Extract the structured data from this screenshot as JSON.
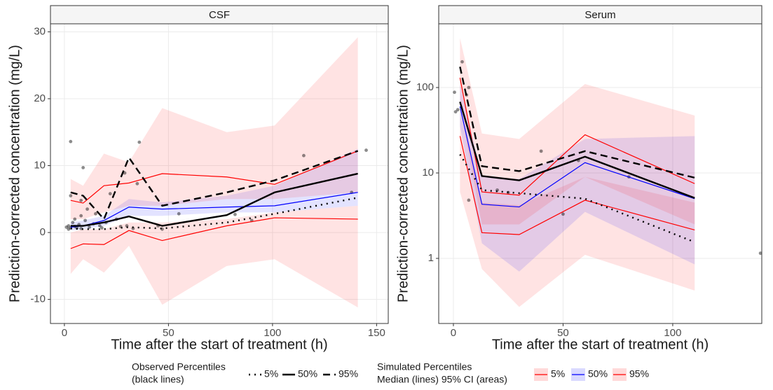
{
  "chart_data": [
    {
      "type": "line",
      "title": "CSF",
      "x_label": "Time after the start of treatment (h)",
      "y_label": "Prediction-corrected concentration (mg/L)",
      "xlim": [
        -6.7,
        155.6
      ],
      "ylim": [
        -13.6,
        31.2
      ],
      "log_y": false,
      "grid": true,
      "xticks": [
        0,
        50,
        100,
        150
      ],
      "yticks": [
        -10,
        0,
        10,
        20,
        30
      ],
      "x": [
        3,
        9,
        19,
        31,
        47,
        78,
        101,
        141
      ],
      "ci": [
        {
          "name": "5%",
          "color": "#ff0000",
          "lower": [
            -6.2,
            -4,
            -6,
            -2,
            -10.8,
            -5,
            -4,
            -11.2
          ],
          "upper": [
            0,
            0.5,
            0.5,
            1.5,
            1.5,
            2,
            3,
            4
          ]
        },
        {
          "name": "50%",
          "color": "#0000ff",
          "lower": [
            0.3,
            0.5,
            1,
            2.5,
            2.5,
            3,
            3,
            4
          ],
          "upper": [
            1.5,
            1.8,
            2.5,
            5,
            4.5,
            5.5,
            7,
            12.5
          ]
        },
        {
          "name": "95%",
          "color": "#ff0000",
          "lower": [
            2,
            2,
            3,
            4,
            4,
            5,
            5,
            6
          ],
          "upper": [
            8,
            7,
            11.8,
            10.5,
            18.6,
            15,
            16,
            29.2
          ]
        }
      ],
      "simulated": [
        {
          "name": "5%",
          "color": "#ff0000",
          "values": [
            -2.4,
            -1.7,
            -1.8,
            0.3,
            -1.2,
            1.0,
            2.2,
            2.0
          ]
        },
        {
          "name": "50%",
          "color": "#0000ff",
          "values": [
            0.8,
            1.0,
            1.8,
            3.8,
            3.5,
            3.8,
            4.0,
            6.0
          ]
        },
        {
          "name": "95%",
          "color": "#ff0000",
          "values": [
            4.8,
            4.4,
            7.0,
            7.4,
            8.8,
            8.3,
            7.2,
            12.2
          ]
        }
      ],
      "observed": [
        {
          "name": "5%",
          "color": "#000000",
          "style": "dotted",
          "values": [
            0.6,
            0.5,
            0.5,
            0.8,
            0.6,
            1.5,
            2.8,
            5.2
          ]
        },
        {
          "name": "50%",
          "color": "#000000",
          "style": "solid",
          "values": [
            1.0,
            1.0,
            1.5,
            2.4,
            1.0,
            2.6,
            6.0,
            8.8
          ]
        },
        {
          "name": "95%",
          "color": "#000000",
          "style": "dashed",
          "values": [
            6.0,
            5.5,
            2.0,
            11.2,
            4.0,
            6.0,
            7.8,
            12.2
          ]
        }
      ],
      "points": {
        "x": [
          1,
          2,
          2,
          3,
          3,
          4,
          5,
          5,
          6,
          7,
          8,
          8,
          9,
          10,
          11,
          12,
          14,
          15,
          17,
          18,
          20,
          22,
          25,
          29,
          30,
          33,
          36,
          45,
          47,
          55,
          82,
          90,
          115,
          138,
          145,
          3,
          8,
          35,
          27
        ],
        "y": [
          0.8,
          1.0,
          0.5,
          5.5,
          13.6,
          1.5,
          0.9,
          2.0,
          0.7,
          1.2,
          2.5,
          0.6,
          9.7,
          1.8,
          3.5,
          0.8,
          1.3,
          2.8,
          1.0,
          0.7,
          1.5,
          5.8,
          2.0,
          8.9,
          1.0,
          0.6,
          13.5,
          1.0,
          0.5,
          2.8,
          2.7,
          1.8,
          11.5,
          6.0,
          12.3,
          0.7,
          4.8,
          7.3,
          0.9
        ]
      }
    },
    {
      "type": "line",
      "title": "Serum",
      "x_label": "Time after the start of treatment (h)",
      "y_label": "Prediction-corrected concentration (mg/L)",
      "xlim": [
        -6.7,
        140.6
      ],
      "ylim": [
        0.173,
        557
      ],
      "log_y": true,
      "grid": true,
      "xticks": [
        0,
        50,
        100
      ],
      "yticks": [
        1,
        10,
        100
      ],
      "x": [
        3,
        13,
        30,
        60,
        110
      ],
      "ci": [
        {
          "name": "5%",
          "color": "#ff0000",
          "lower": [
            6,
            0.75,
            0.27,
            1.1,
            0.42
          ],
          "upper": [
            55,
            4.5,
            4.2,
            9,
            4.5
          ]
        },
        {
          "name": "50%",
          "color": "#0000ff",
          "lower": [
            35,
            1.5,
            0.7,
            3.5,
            0.85
          ],
          "upper": [
            110,
            9,
            8.5,
            25,
            27
          ]
        },
        {
          "name": "95%",
          "color": "#ff0000",
          "lower": [
            60,
            2.5,
            2.5,
            9,
            2.5
          ],
          "upper": [
            380,
            29,
            25,
            110,
            47
          ]
        }
      ],
      "simulated": [
        {
          "name": "5%",
          "color": "#ff0000",
          "values": [
            27,
            2.0,
            1.9,
            4.8,
            2.15
          ]
        },
        {
          "name": "50%",
          "color": "#0000ff",
          "values": [
            60,
            4.3,
            4.0,
            13.2,
            5.0
          ]
        },
        {
          "name": "95%",
          "color": "#ff0000",
          "values": [
            130,
            6.0,
            5.5,
            28,
            7.5
          ]
        }
      ],
      "observed": [
        {
          "name": "5%",
          "color": "#000000",
          "style": "dotted",
          "values": [
            16.5,
            6.3,
            5.8,
            5.0,
            1.55
          ]
        },
        {
          "name": "50%",
          "color": "#000000",
          "style": "solid",
          "values": [
            68,
            9.2,
            8.2,
            15.5,
            5.1
          ]
        },
        {
          "name": "95%",
          "color": "#000000",
          "style": "dashed",
          "values": [
            175,
            12,
            10.5,
            18,
            8.8
          ]
        }
      ],
      "points": {
        "x": [
          0.5,
          1,
          2,
          4,
          6,
          7,
          7,
          20,
          25,
          40,
          50,
          57,
          80,
          140
        ],
        "y": [
          88,
          52,
          55,
          200,
          82,
          100,
          4.8,
          6.3,
          5.9,
          18,
          3.3,
          14,
          9,
          1.15
        ]
      }
    }
  ],
  "legend": {
    "observed_title": [
      "Observed Percentiles",
      "(black lines)"
    ],
    "simulated_title": [
      "Simulated Percentiles",
      "Median (lines) 95% CI (areas)"
    ]
  }
}
